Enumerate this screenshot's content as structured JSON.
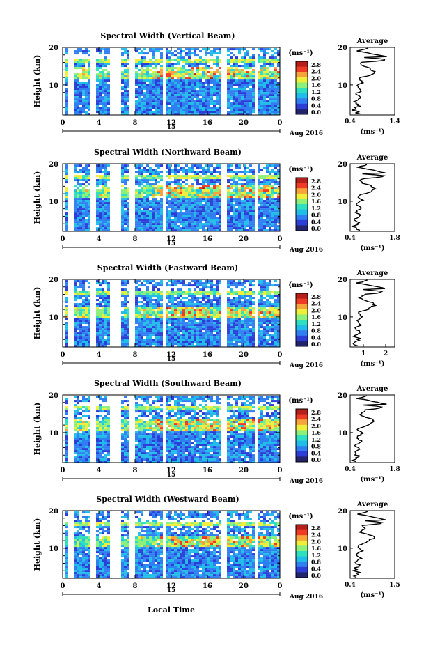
{
  "chart_data": [
    {
      "type": "heatmap",
      "title": "Spectral Width (Vertical Beam)",
      "ylabel": "Height (km)",
      "ylim": [
        2,
        20
      ],
      "yticks": [
        "20",
        "10"
      ],
      "xticks": [
        "0",
        "4",
        "8",
        "12",
        "16",
        "20",
        "0"
      ],
      "xlim_hours": [
        0,
        24
      ],
      "date_label": "15",
      "month_label": "Aug 2016",
      "colorbar": {
        "unit": "(ms⁻¹)",
        "ticks": [
          "2.8",
          "2.4",
          "2.0",
          "1.6",
          "1.2",
          "0.8",
          "0.4",
          "0.0"
        ]
      },
      "average": {
        "title": "Average",
        "xlabel": "(ms⁻¹)",
        "xticks": [
          "0.4",
          "1.4"
        ],
        "yticks": [
          "20",
          "10"
        ],
        "xlim": [
          0.4,
          1.4
        ]
      },
      "gaps_hours": [
        0.8,
        3.2,
        5.4,
        6.0,
        7.6,
        11.0,
        17.7,
        21.2
      ]
    },
    {
      "type": "heatmap",
      "title": "Spectral Width (Northward Beam)",
      "ylabel": "Height (km)",
      "ylim": [
        2,
        20
      ],
      "yticks": [
        "20",
        "10"
      ],
      "xticks": [
        "0",
        "4",
        "8",
        "12",
        "16",
        "20",
        "0"
      ],
      "xlim_hours": [
        0,
        24
      ],
      "date_label": "15",
      "month_label": "Aug 2016",
      "colorbar": {
        "unit": "(ms⁻¹)",
        "ticks": [
          "2.8",
          "2.4",
          "2.0",
          "1.6",
          "1.2",
          "0.8",
          "0.4",
          "0.0"
        ]
      },
      "average": {
        "title": "Average",
        "xlabel": "(ms⁻¹)",
        "xticks": [
          "0.4",
          "1.8"
        ],
        "yticks": [
          "20",
          "10"
        ],
        "xlim": [
          0.4,
          1.8
        ]
      },
      "gaps_hours": [
        0.8,
        3.2,
        5.4,
        6.0,
        7.6,
        11.0,
        17.7,
        21.2
      ]
    },
    {
      "type": "heatmap",
      "title": "Spectral Width (Eastward Beam)",
      "ylabel": "Height (km)",
      "ylim": [
        2,
        20
      ],
      "yticks": [
        "20",
        "10"
      ],
      "xticks": [
        "0",
        "4",
        "8",
        "12",
        "16",
        "20",
        "0"
      ],
      "xlim_hours": [
        0,
        24
      ],
      "date_label": "15",
      "month_label": "Aug 2016",
      "colorbar": {
        "unit": "(ms⁻¹)",
        "ticks": [
          "2.8",
          "2.4",
          "2.0",
          "1.6",
          "1.2",
          "0.8",
          "0.4",
          "0.0"
        ]
      },
      "average": {
        "title": "Average",
        "xlabel": "(ms⁻¹)",
        "xticks": [
          "1",
          "2"
        ],
        "yticks": [
          "20",
          "10"
        ],
        "xlim": [
          0.4,
          2.2
        ]
      },
      "gaps_hours": [
        0.8,
        3.2,
        5.4,
        6.0,
        7.6,
        11.0,
        17.7,
        21.2
      ]
    },
    {
      "type": "heatmap",
      "title": "Spectral Width (Southward Beam)",
      "ylabel": "Height (km)",
      "ylim": [
        2,
        20
      ],
      "yticks": [
        "20",
        "10"
      ],
      "xticks": [
        "0",
        "4",
        "8",
        "12",
        "16",
        "20",
        "0"
      ],
      "xlim_hours": [
        0,
        24
      ],
      "date_label": "15",
      "month_label": "Aug 2016",
      "colorbar": {
        "unit": "(ms⁻¹)",
        "ticks": [
          "2.8",
          "2.4",
          "2.0",
          "1.6",
          "1.2",
          "0.8",
          "0.4",
          "0.0"
        ]
      },
      "average": {
        "title": "Average",
        "xlabel": "(ms⁻¹)",
        "xticks": [
          "0.4",
          "1.8"
        ],
        "yticks": [
          "20",
          "10"
        ],
        "xlim": [
          0.4,
          1.8
        ]
      },
      "gaps_hours": [
        0.8,
        3.2,
        5.4,
        6.0,
        7.6,
        11.0,
        17.7,
        21.2
      ]
    },
    {
      "type": "heatmap",
      "title": "Spectral Width (Westward Beam)",
      "ylabel": "Height (km)",
      "ylim": [
        2,
        20
      ],
      "yticks": [
        "20",
        "10"
      ],
      "xticks": [
        "0",
        "4",
        "8",
        "12",
        "16",
        "20",
        "0"
      ],
      "xlim_hours": [
        0,
        24
      ],
      "date_label": "15",
      "month_label": "Aug 2016",
      "colorbar": {
        "unit": "(ms⁻¹)",
        "ticks": [
          "2.8",
          "2.4",
          "2.0",
          "1.6",
          "1.2",
          "0.8",
          "0.4",
          "0.0"
        ]
      },
      "average": {
        "title": "Average",
        "xlabel": "(ms⁻¹)",
        "xticks": [
          "0.4",
          "1.5"
        ],
        "yticks": [
          "20",
          "10"
        ],
        "xlim": [
          0.4,
          1.5
        ]
      },
      "gaps_hours": [
        0.8,
        3.2,
        5.4,
        6.0,
        7.6,
        11.0,
        17.7,
        21.2
      ]
    }
  ],
  "footer": {
    "xlabel": "Local Time"
  },
  "colors": {
    "scale": [
      "#23246e",
      "#2b3fd8",
      "#2f7ff3",
      "#1fbde8",
      "#2ee0c0",
      "#8cf07a",
      "#f1ee3b",
      "#f7a23a",
      "#ef3a26",
      "#b51e1a"
    ]
  }
}
